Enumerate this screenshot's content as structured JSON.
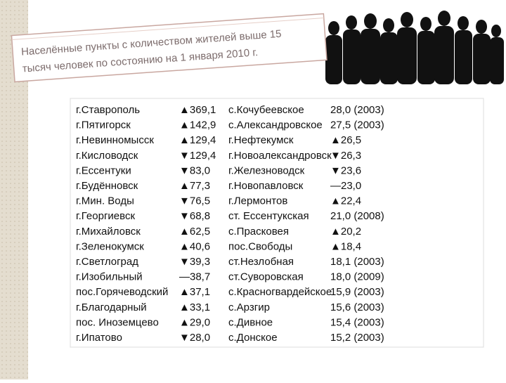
{
  "title_lines": [
    "Населённые пункты с количеством жителей выше 15",
    "тысяч человек по состоянию на 1 января 2010 г."
  ],
  "table": {
    "rows": [
      [
        "г.Ставрополь",
        "▲369,1",
        "с.Кочубеевское",
        "28,0 (2003)"
      ],
      [
        "г.Пятигорск",
        "▲142,9",
        "с.Александровское",
        "27,5 (2003)"
      ],
      [
        "г.Невинномысск",
        "▲129,4",
        "г.Нефтекумск",
        "▲26,5"
      ],
      [
        "г.Кисловодск",
        "▼129,4",
        "г.Новоалександровск",
        "▼26,3"
      ],
      [
        "г.Ессентуки",
        "▼83,0",
        "г.Железноводск",
        "▼23,6"
      ],
      [
        "г.Будённовск",
        "▲77,3",
        "г.Новопавловск",
        "—23,0"
      ],
      [
        "г.Мин. Воды",
        "▼76,5",
        "г.Лермонтов",
        "▲22,4"
      ],
      [
        "г.Георгиевск",
        "▼68,8",
        "ст. Ессентукская",
        "21,0 (2008)"
      ],
      [
        "г.Михайловск",
        "▲62,5",
        "с.Прасковея",
        "▲20,2"
      ],
      [
        "г.Зеленокумск",
        "▲40,6",
        "пос.Свободы",
        "▲18,4"
      ],
      [
        "г.Светлоград",
        "▼39,3",
        "ст.Незлобная",
        "18,1 (2003)"
      ],
      [
        "г.Изобильный",
        "—38,7",
        "ст.Суворовская",
        "18,0 (2009)"
      ],
      [
        "пос.Горячеводский",
        "▲37,1",
        "с.Красногвардейское",
        "15,9 (2003)"
      ],
      [
        "г.Благодарный",
        "▲33,1",
        "с.Арзгир",
        "15,6 (2003)"
      ],
      [
        "пос. Иноземцево",
        "▲29,0",
        "с.Дивное",
        "15,4 (2003)"
      ],
      [
        "г.Ипатово",
        "▼28,0",
        "с.Донское",
        "15,2 (2003)"
      ]
    ]
  }
}
